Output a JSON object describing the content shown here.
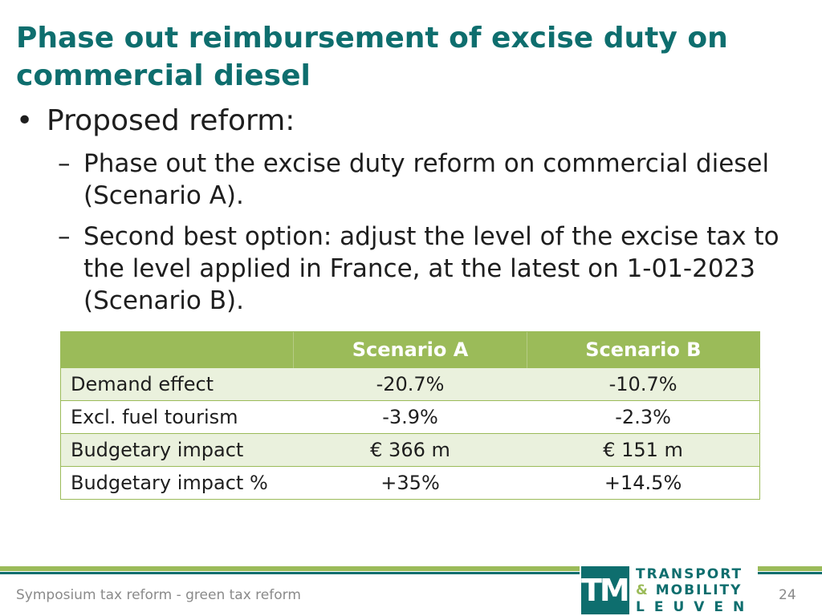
{
  "slide": {
    "title": "Phase out reimbursement of excise duty on commercial diesel",
    "bullet": "Proposed reform:",
    "subbullets": [
      "Phase out the excise duty reform on commercial diesel (Scenario A).",
      "Second best option: adjust the level of the excise tax to the level applied in France, at the latest on 1-01-2023 (Scenario B)."
    ]
  },
  "table": {
    "headers": [
      "",
      "Scenario A",
      "Scenario B"
    ],
    "rows": [
      [
        "Demand effect",
        "-20.7%",
        "-10.7%"
      ],
      [
        "Excl. fuel tourism",
        "-3.9%",
        "-2.3%"
      ],
      [
        "Budgetary impact",
        "€ 366 m",
        "€ 151 m"
      ],
      [
        "Budgetary impact %",
        "+35%",
        "+14.5%"
      ]
    ]
  },
  "footer": {
    "text": "Symposium tax reform - green tax reform",
    "page": "24"
  },
  "logo": {
    "mark": "TML",
    "line1": "TRANSPORT",
    "amp": "&",
    "line2": "MOBILITY",
    "line3": "LEUVEN"
  },
  "colors": {
    "title": "#0e6e6e",
    "accent": "#9bbb59",
    "row_alt": "#eaf1dd"
  }
}
